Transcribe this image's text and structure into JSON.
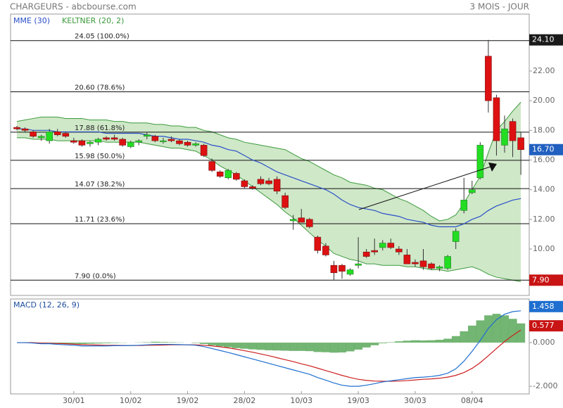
{
  "header": {
    "title": "CHARGEURS - abcbourse.com",
    "period": "3 MOIS - JOUR"
  },
  "chart_data": [
    {
      "type": "candlestick",
      "categories": [
        null,
        null,
        null,
        null,
        null,
        null,
        null,
        "30/01",
        null,
        null,
        null,
        null,
        null,
        null,
        "10/02",
        null,
        null,
        null,
        null,
        null,
        null,
        "19/02",
        null,
        null,
        null,
        null,
        null,
        null,
        "28/02",
        null,
        null,
        null,
        null,
        null,
        null,
        "10/03",
        null,
        null,
        null,
        null,
        null,
        null,
        "19/03",
        null,
        null,
        null,
        null,
        null,
        null,
        "30/03",
        null,
        null,
        null,
        null,
        null,
        null,
        "08/04",
        null,
        null,
        null,
        null,
        null,
        null
      ],
      "open": [
        18.2,
        18.1,
        17.9,
        17.5,
        17.3,
        17.9,
        17.8,
        17.3,
        17.3,
        17.1,
        17.2,
        17.5,
        17.5,
        17.4,
        16.9,
        17.2,
        17.6,
        17.6,
        17.3,
        17.4,
        17.3,
        17.2,
        17.0,
        17.0,
        15.9,
        15.2,
        14.8,
        15.1,
        14.6,
        14.2,
        14.7,
        14.6,
        14.7,
        13.6,
        11.9,
        12.1,
        12.0,
        10.8,
        10.2,
        8.9,
        8.9,
        8.3,
        8.9,
        9.8,
        9.9,
        10.1,
        10.4,
        10.0,
        9.6,
        9.1,
        9.2,
        9.0,
        8.7,
        8.7,
        10.5,
        12.6,
        13.8,
        14.8,
        23.0,
        20.2,
        17.0,
        18.6,
        17.5
      ],
      "high": [
        18.3,
        18.2,
        18.0,
        17.7,
        18.1,
        18.1,
        17.9,
        17.5,
        17.4,
        17.3,
        17.5,
        17.6,
        17.7,
        17.5,
        17.3,
        17.4,
        17.9,
        17.7,
        17.5,
        17.6,
        17.4,
        17.3,
        17.2,
        17.1,
        16.1,
        15.3,
        15.4,
        15.2,
        14.7,
        14.3,
        14.9,
        14.8,
        14.9,
        13.8,
        12.3,
        12.7,
        12.1,
        10.9,
        10.4,
        9.2,
        9.0,
        8.7,
        10.8,
        10.0,
        10.7,
        10.6,
        10.7,
        10.2,
        10.0,
        9.3,
        10.0,
        9.1,
        8.9,
        9.6,
        11.4,
        14.8,
        14.6,
        17.2,
        24.1,
        20.4,
        19.0,
        18.8,
        17.9
      ],
      "low": [
        18.0,
        17.9,
        17.5,
        17.3,
        17.1,
        17.6,
        17.5,
        17.1,
        16.9,
        16.9,
        17.0,
        17.3,
        17.3,
        16.9,
        16.8,
        17.0,
        17.4,
        17.2,
        17.1,
        17.2,
        17.0,
        16.9,
        16.9,
        16.2,
        15.2,
        14.8,
        14.7,
        14.6,
        14.1,
        14.0,
        14.3,
        14.3,
        13.7,
        12.7,
        11.3,
        11.8,
        11.4,
        9.7,
        9.5,
        7.9,
        8.0,
        8.2,
        8.7,
        9.4,
        9.6,
        9.9,
        10.0,
        9.6,
        9.0,
        8.8,
        8.6,
        8.6,
        8.5,
        8.6,
        10.0,
        12.4,
        13.7,
        14.7,
        19.2,
        16.3,
        16.5,
        16.2,
        15.0
      ],
      "close": [
        18.1,
        18.0,
        17.6,
        17.6,
        17.9,
        17.7,
        17.6,
        17.2,
        17.0,
        17.2,
        17.4,
        17.4,
        17.4,
        17.0,
        17.2,
        17.3,
        17.7,
        17.3,
        17.3,
        17.3,
        17.1,
        17.0,
        17.1,
        16.3,
        15.3,
        14.9,
        15.3,
        14.7,
        14.2,
        14.1,
        14.4,
        14.4,
        13.9,
        12.8,
        12.0,
        11.8,
        11.5,
        9.9,
        9.6,
        8.4,
        8.5,
        8.6,
        9.0,
        9.5,
        9.8,
        10.4,
        10.1,
        9.8,
        9.0,
        9.0,
        8.8,
        8.7,
        8.8,
        9.5,
        11.2,
        13.3,
        14.0,
        17.0,
        20.0,
        17.3,
        18.1,
        17.3,
        16.7
      ],
      "up_color": "#22dd22",
      "down_color": "#dd1111",
      "mme": {
        "name": "MME (30)",
        "color": "#2a4fc9",
        "values": [
          18.1,
          18.1,
          18.0,
          18.0,
          18.0,
          17.9,
          17.9,
          17.9,
          17.9,
          17.9,
          17.9,
          17.8,
          17.8,
          17.8,
          17.8,
          17.8,
          17.7,
          17.6,
          17.6,
          17.5,
          17.4,
          17.4,
          17.3,
          17.2,
          17.0,
          16.9,
          16.7,
          16.6,
          16.3,
          16.0,
          15.8,
          15.5,
          15.2,
          15.0,
          14.8,
          14.6,
          14.4,
          14.2,
          14.0,
          13.7,
          13.3,
          13.0,
          12.8,
          12.7,
          12.6,
          12.4,
          12.3,
          12.2,
          12.0,
          11.9,
          11.8,
          11.6,
          11.5,
          11.5,
          11.5,
          11.7,
          12.0,
          12.2,
          12.6,
          12.9,
          13.1,
          13.3,
          13.4
        ]
      },
      "keltner": {
        "name": "KELTNER (20, 2)",
        "color": "#3c9a3c",
        "fill": "#cfe8c8",
        "upper": [
          18.6,
          18.7,
          18.8,
          18.9,
          18.9,
          18.9,
          18.8,
          18.8,
          18.8,
          18.7,
          18.7,
          18.7,
          18.6,
          18.6,
          18.5,
          18.5,
          18.5,
          18.4,
          18.4,
          18.3,
          18.3,
          18.2,
          18.2,
          18.0,
          17.9,
          17.7,
          17.5,
          17.4,
          17.2,
          17.1,
          17.0,
          16.9,
          16.8,
          16.7,
          16.4,
          16.1,
          15.9,
          15.6,
          15.3,
          15.0,
          14.8,
          14.5,
          14.4,
          14.3,
          14.1,
          14.0,
          13.7,
          13.4,
          13.2,
          12.9,
          12.6,
          12.2,
          11.9,
          12.0,
          12.3,
          13.1,
          14.0,
          14.9,
          16.5,
          18.0,
          18.6,
          19.3,
          19.9
        ],
        "lower": [
          17.5,
          17.5,
          17.4,
          17.4,
          17.4,
          17.3,
          17.3,
          17.3,
          17.3,
          17.3,
          17.3,
          17.2,
          17.2,
          17.2,
          17.2,
          17.2,
          17.1,
          17.0,
          16.9,
          16.8,
          16.8,
          16.7,
          16.6,
          16.3,
          16.0,
          15.6,
          15.3,
          15.0,
          14.6,
          14.2,
          13.8,
          13.4,
          13.0,
          12.5,
          12.1,
          11.6,
          11.1,
          10.6,
          10.2,
          9.7,
          9.5,
          9.3,
          9.2,
          9.0,
          9.0,
          8.9,
          8.9,
          8.9,
          8.8,
          8.8,
          8.7,
          8.6,
          8.6,
          8.5,
          8.6,
          8.7,
          8.8,
          8.6,
          8.3,
          8.1,
          8.0,
          7.9,
          7.8
        ]
      },
      "fib_levels": [
        {
          "value": 24.05,
          "label": "24.05 (100.0%)"
        },
        {
          "value": 20.6,
          "label": "20.60 (78.6%)"
        },
        {
          "value": 17.88,
          "label": "17.88 (61.8%)"
        },
        {
          "value": 15.98,
          "label": "15.98 (50.0%)"
        },
        {
          "value": 14.07,
          "label": "14.07 (38.2%)"
        },
        {
          "value": 11.71,
          "label": "11.71 (23.6%)"
        },
        {
          "value": 7.9,
          "label": "7.90 (0.0%)"
        }
      ],
      "price_labels": [
        {
          "value": 24.1,
          "label": "24.10",
          "color": "#1a1a1a"
        },
        {
          "value": 16.7,
          "label": "16.70",
          "color": "#1f5fbf"
        },
        {
          "value": 7.9,
          "label": "7.90",
          "color": "#c81414"
        }
      ],
      "ylim": [
        6.87,
        25.84
      ],
      "yticks": [
        {
          "value": 10,
          "label": "10.00"
        },
        {
          "value": 12,
          "label": "12.00"
        },
        {
          "value": 14,
          "label": "14.00"
        },
        {
          "value": 16,
          "label": "16.00"
        },
        {
          "value": 18,
          "label": "18.00"
        },
        {
          "value": 20,
          "label": "20.00"
        },
        {
          "value": 22,
          "label": "22.00"
        }
      ]
    },
    {
      "type": "macd",
      "title": "MACD (12, 26, 9)",
      "macd": {
        "color": "#1f6fd0",
        "values": [
          0.0,
          0.0,
          -0.02,
          -0.05,
          -0.05,
          -0.08,
          -0.1,
          -0.12,
          -0.15,
          -0.15,
          -0.15,
          -0.15,
          -0.14,
          -0.14,
          -0.13,
          -0.12,
          -0.1,
          -0.08,
          -0.08,
          -0.08,
          -0.09,
          -0.1,
          -0.12,
          -0.18,
          -0.27,
          -0.36,
          -0.45,
          -0.55,
          -0.65,
          -0.75,
          -0.85,
          -0.95,
          -1.05,
          -1.15,
          -1.25,
          -1.35,
          -1.45,
          -1.6,
          -1.72,
          -1.85,
          -1.95,
          -2.0,
          -2.0,
          -1.95,
          -1.88,
          -1.8,
          -1.75,
          -1.7,
          -1.65,
          -1.6,
          -1.58,
          -1.55,
          -1.5,
          -1.4,
          -1.2,
          -0.85,
          -0.4,
          0.1,
          0.65,
          1.05,
          1.3,
          1.42,
          1.458
        ]
      },
      "signal": {
        "color": "#cc1f1f",
        "values": [
          0.0,
          0.0,
          0.0,
          -0.02,
          -0.03,
          -0.04,
          -0.05,
          -0.07,
          -0.09,
          -0.1,
          -0.11,
          -0.12,
          -0.12,
          -0.13,
          -0.13,
          -0.13,
          -0.12,
          -0.12,
          -0.11,
          -0.1,
          -0.1,
          -0.1,
          -0.1,
          -0.12,
          -0.15,
          -0.19,
          -0.24,
          -0.3,
          -0.37,
          -0.44,
          -0.52,
          -0.6,
          -0.69,
          -0.78,
          -0.87,
          -0.97,
          -1.06,
          -1.17,
          -1.28,
          -1.39,
          -1.5,
          -1.6,
          -1.68,
          -1.73,
          -1.76,
          -1.77,
          -1.77,
          -1.76,
          -1.74,
          -1.71,
          -1.68,
          -1.66,
          -1.63,
          -1.58,
          -1.5,
          -1.37,
          -1.18,
          -0.92,
          -0.6,
          -0.27,
          0.05,
          0.33,
          0.577
        ]
      },
      "histogram": {
        "color": "#5aa85a",
        "values": [
          0,
          0,
          -0.02,
          -0.03,
          -0.02,
          -0.04,
          -0.05,
          -0.05,
          -0.06,
          -0.05,
          -0.04,
          -0.03,
          -0.02,
          -0.01,
          0,
          0.01,
          0.02,
          0.04,
          0.03,
          0.02,
          0.01,
          0,
          -0.02,
          -0.06,
          -0.12,
          -0.17,
          -0.21,
          -0.25,
          -0.28,
          -0.31,
          -0.33,
          -0.35,
          -0.36,
          -0.37,
          -0.38,
          -0.38,
          -0.39,
          -0.43,
          -0.44,
          -0.46,
          -0.45,
          -0.4,
          -0.32,
          -0.22,
          -0.12,
          -0.03,
          0.02,
          0.06,
          0.09,
          0.11,
          0.1,
          0.11,
          0.13,
          0.18,
          0.3,
          0.52,
          0.78,
          1.02,
          1.25,
          1.32,
          1.25,
          1.09,
          0.881
        ]
      },
      "last_labels": [
        {
          "value": 1.458,
          "label": "1.458",
          "color": "#1f6fd0"
        },
        {
          "value": 0.577,
          "label": "0.577",
          "color": "#c81414"
        }
      ],
      "ylim": [
        -2.35,
        2.0
      ],
      "yticks": [
        {
          "value": 0,
          "label": "0.000"
        },
        {
          "value": -2,
          "label": "-2.000"
        }
      ]
    }
  ]
}
